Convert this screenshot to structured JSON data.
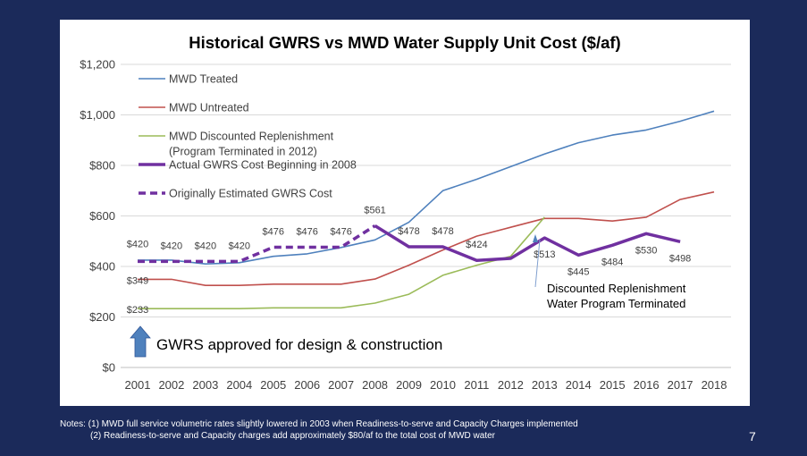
{
  "chart_data": {
    "type": "line",
    "title": "Historical GWRS vs MWD Water Supply Unit Cost ($/af)",
    "x": [
      "2001",
      "2002",
      "2003",
      "2004",
      "2005",
      "2006",
      "2007",
      "2008",
      "2009",
      "2010",
      "2011",
      "2012",
      "2013",
      "2014",
      "2015",
      "2016",
      "2017",
      "2018"
    ],
    "y_ticks": [
      "$0",
      "$200",
      "$400",
      "$600",
      "$800",
      "$1,000",
      "$1,200"
    ],
    "ylim": [
      0,
      1200
    ],
    "grid": "horizontal",
    "legend_position": "top-left",
    "series": [
      {
        "key": "mwd_treated",
        "name": "MWD Treated",
        "color": "#4f81bd",
        "width": 1.6,
        "dash": "",
        "values": [
          425,
          425,
          410,
          415,
          440,
          450,
          475,
          505,
          575,
          700,
          745,
          795,
          845,
          890,
          920,
          940,
          975,
          1015
        ]
      },
      {
        "key": "mwd_untreated",
        "name": "MWD Untreated",
        "color": "#c0504d",
        "width": 1.6,
        "dash": "",
        "values": [
          349,
          349,
          325,
          325,
          330,
          330,
          330,
          350,
          405,
          465,
          520,
          555,
          590,
          590,
          580,
          595,
          665,
          695
        ]
      },
      {
        "key": "mwd_discounted",
        "name": "MWD Discounted Replenishment",
        "name_line2": "(Program Terminated in 2012)",
        "color": "#9bbb59",
        "width": 1.6,
        "dash": "",
        "values": [
          233,
          233,
          233,
          233,
          236,
          236,
          236,
          255,
          290,
          365,
          405,
          440,
          595,
          null,
          null,
          null,
          null,
          null
        ]
      },
      {
        "key": "gwrs_actual",
        "name": "Actual GWRS Cost Beginning in 2008",
        "color": "#7030a0",
        "width": 3.5,
        "dash": "",
        "values": [
          null,
          null,
          null,
          null,
          null,
          null,
          null,
          561,
          478,
          478,
          424,
          432,
          513,
          445,
          484,
          530,
          498,
          null
        ]
      },
      {
        "key": "gwrs_estimated",
        "name": "Originally Estimated GWRS Cost",
        "color": "#7030a0",
        "width": 3.5,
        "dash": "8,5",
        "values": [
          420,
          420,
          420,
          420,
          476,
          476,
          476,
          561,
          null,
          null,
          null,
          null,
          null,
          null,
          null,
          null,
          null,
          null
        ]
      }
    ],
    "data_labels": [
      {
        "text": "$420",
        "year": "2001",
        "value": 420,
        "dy": -16,
        "size": 13
      },
      {
        "text": "$420",
        "year": "2002",
        "value": 420,
        "dy": -14
      },
      {
        "text": "$420",
        "year": "2003",
        "value": 420,
        "dy": -14
      },
      {
        "text": "$420",
        "year": "2004",
        "value": 420,
        "dy": -14
      },
      {
        "text": "$476",
        "year": "2005",
        "value": 476,
        "dy": -14
      },
      {
        "text": "$476",
        "year": "2006",
        "value": 476,
        "dy": -14
      },
      {
        "text": "$476",
        "year": "2007",
        "value": 476,
        "dy": -14
      },
      {
        "text": "$561",
        "year": "2008",
        "value": 561,
        "dy": -14
      },
      {
        "text": "$478",
        "year": "2009",
        "value": 478,
        "dy": -14
      },
      {
        "text": "$478",
        "year": "2010",
        "value": 478,
        "dy": -14
      },
      {
        "text": "$424",
        "year": "2011",
        "value": 424,
        "dy": -14
      },
      {
        "text": "$513",
        "year": "2013",
        "value": 513,
        "dy": 22
      },
      {
        "text": "$445",
        "year": "2014",
        "value": 445,
        "dy": 22
      },
      {
        "text": "$484",
        "year": "2015",
        "value": 484,
        "dy": 22
      },
      {
        "text": "$530",
        "year": "2016",
        "value": 530,
        "dy": 22
      },
      {
        "text": "$498",
        "year": "2017",
        "value": 498,
        "dy": 22
      },
      {
        "text": "$349",
        "year": "2001",
        "value": 349,
        "dy": 5
      },
      {
        "text": "$233",
        "year": "2001",
        "value": 233,
        "dy": 5
      }
    ],
    "annotations": {
      "gwrs_approved": "GWRS approved for design & construction",
      "discounted_terminated_line1": "Discounted Replenishment",
      "discounted_terminated_line2": "Water Program Terminated"
    }
  },
  "notes": {
    "line1": "Notes: (1) MWD full service volumetric rates slightly lowered in 2003 when Readiness-to-serve and Capacity Charges implemented",
    "line2": "(2) Readiness-to-serve and Capacity charges add approximately $80/af to the total cost of MWD water"
  },
  "page_number": "7",
  "colors": {
    "background": "#1b2a5a",
    "arrow": "#4f81bd",
    "grid": "#d9d9d9"
  }
}
